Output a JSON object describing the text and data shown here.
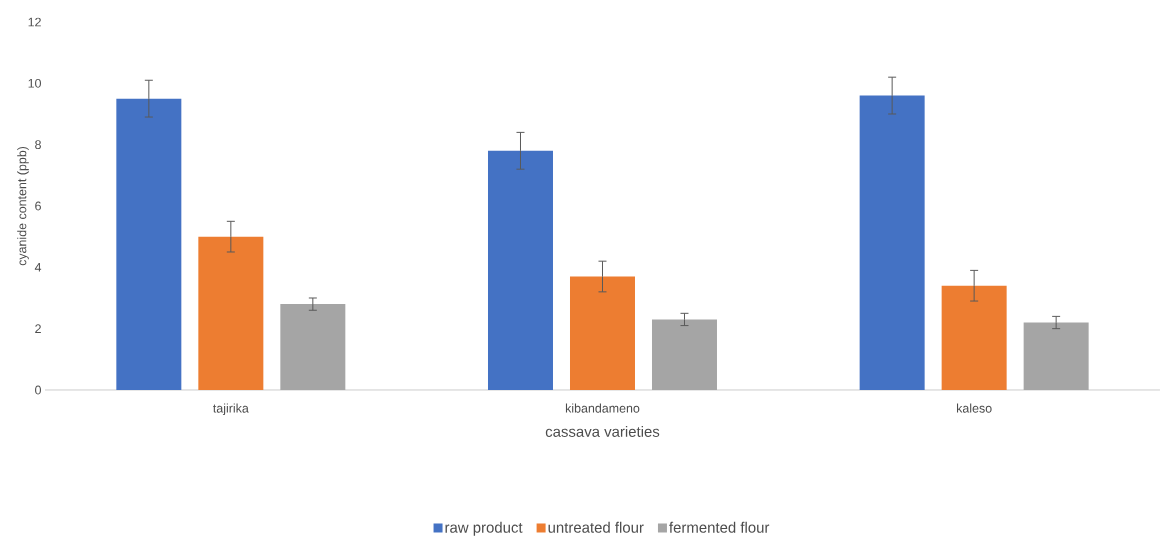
{
  "chart_data": {
    "type": "bar",
    "xlabel": "cassava varieties",
    "ylabel": "cyanide content (ppb)",
    "categories": [
      "tajirika",
      "kibandameno",
      "kaleso"
    ],
    "series": [
      {
        "name": "raw product",
        "color": "#4472c4",
        "values": [
          9.5,
          7.8,
          9.6
        ],
        "errors": [
          0.6,
          0.6,
          0.6
        ]
      },
      {
        "name": "untreated flour",
        "color": "#ed7d31",
        "values": [
          5.0,
          3.7,
          3.4
        ],
        "errors": [
          0.5,
          0.5,
          0.5
        ]
      },
      {
        "name": "fermented flour",
        "color": "#a5a5a5",
        "values": [
          2.8,
          2.3,
          2.2
        ],
        "errors": [
          0.2,
          0.2,
          0.2
        ]
      }
    ],
    "ylim": [
      0,
      12
    ],
    "yticks": [
      0,
      2,
      4,
      6,
      8,
      10,
      12
    ],
    "legend": "bottom"
  }
}
